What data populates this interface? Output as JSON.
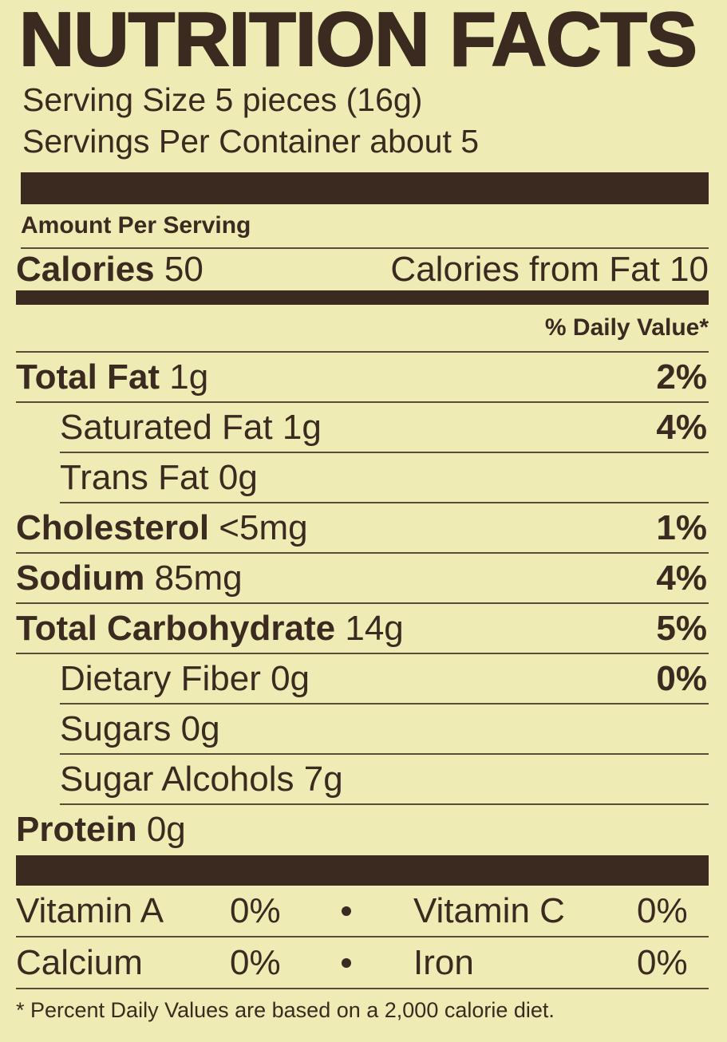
{
  "header": {
    "title": "NUTRITION FACTS"
  },
  "serving": {
    "size": "Serving Size 5 pieces (16g)",
    "per_container": "Servings Per Container about 5"
  },
  "amount_per_serving": "Amount Per Serving",
  "calories": {
    "label": "Calories",
    "value": "50",
    "from_fat": "Calories from Fat 10"
  },
  "daily_value_header": "% Daily Value*",
  "nutrients": [
    {
      "name": "Total Fat",
      "amount": "1g",
      "dv": "2%"
    },
    {
      "name": "Saturated Fat",
      "amount": "1g",
      "dv": "4%"
    },
    {
      "name": "Trans Fat",
      "amount": "0g"
    },
    {
      "name": "Cholesterol",
      "amount": "<5mg",
      "dv": "1%"
    },
    {
      "name": "Sodium",
      "amount": "85mg",
      "dv": "4%"
    },
    {
      "name": "Total Carbohydrate",
      "amount": "14g",
      "dv": "5%"
    },
    {
      "name": "Dietary Fiber",
      "amount": "0g",
      "dv": "0%"
    },
    {
      "name": "Sugars",
      "amount": "0g"
    },
    {
      "name": "Sugar Alcohols",
      "amount": "7g"
    },
    {
      "name": "Protein",
      "amount": "0g"
    }
  ],
  "vitamins": [
    [
      {
        "name": "Vitamin A",
        "dv": "0%"
      },
      {
        "name": "Vitamin C",
        "dv": "0%"
      }
    ],
    [
      {
        "name": "Calcium",
        "dv": "0%"
      },
      {
        "name": "Iron",
        "dv": "0%"
      }
    ]
  ],
  "footnote": "* Percent Daily Values are based on a 2,000 calorie diet."
}
